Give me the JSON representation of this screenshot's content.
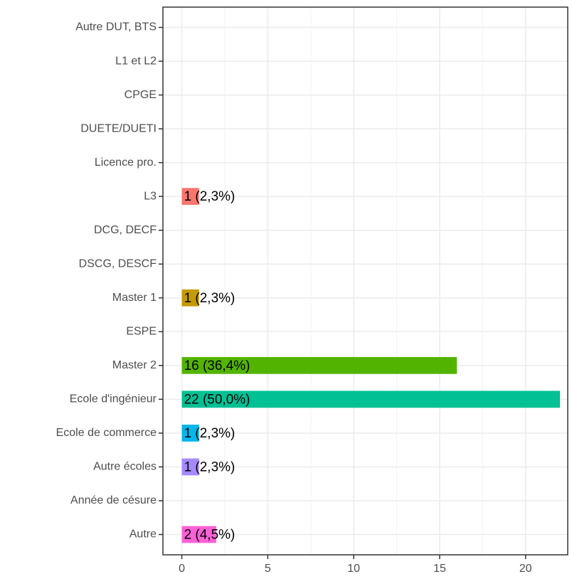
{
  "chart_data": {
    "type": "barh",
    "categories": [
      "Autre DUT, BTS",
      "L1 et L2",
      "CPGE",
      "DUETE/DUETI",
      "Licence pro.",
      "L3",
      "DCG, DECF",
      "DSCG, DESCF",
      "Master 1",
      "ESPE",
      "Master 2",
      "Ecole d'ingénieur",
      "Ecole de commerce",
      "Autre écoles",
      "Année de césure",
      "Autre"
    ],
    "values": [
      0,
      0,
      0,
      0,
      0,
      1,
      0,
      0,
      1,
      0,
      16,
      22,
      1,
      1,
      0,
      2
    ],
    "value_labels": [
      null,
      null,
      null,
      null,
      null,
      "1 (2,3%)",
      null,
      null,
      "1 (2,3%)",
      null,
      "16 (36,4%)",
      "22 (50,0%)",
      "1 (2,3%)",
      "1 (2,3%)",
      null,
      "2 (4,5%)"
    ],
    "colors": [
      null,
      null,
      null,
      null,
      null,
      "#F8766D",
      null,
      null,
      "#C49A00",
      null,
      "#53B400",
      "#00C094",
      "#00B6EB",
      "#A58AFF",
      null,
      "#FB61D7"
    ],
    "xlim": [
      -1.1,
      22.45
    ],
    "xticks": [
      0,
      5,
      10,
      15,
      20
    ],
    "xticks_minor": [
      2.5,
      7.5,
      12.5,
      17.5
    ],
    "grid": true
  }
}
